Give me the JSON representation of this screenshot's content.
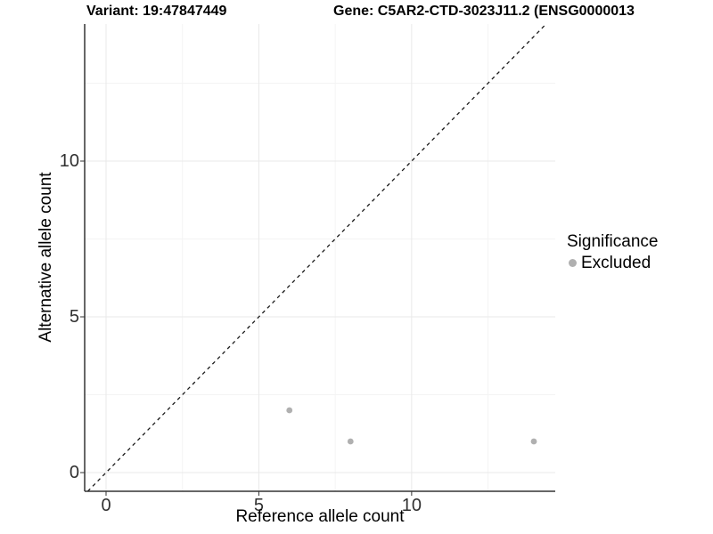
{
  "chart_data": {
    "type": "scatter",
    "title_left": "Variant: 19:47847449",
    "title_right": "Gene: C5AR2-CTD-3023J11.2 (ENSG0000013",
    "xlabel": "Reference allele count",
    "ylabel": "Alternative allele count",
    "xlim": [
      -0.7,
      14.7
    ],
    "ylim": [
      -0.6,
      14.4
    ],
    "x_major_ticks": [
      0,
      5,
      10
    ],
    "y_major_ticks": [
      0,
      5,
      10
    ],
    "x_minor_ticks": [
      2.5,
      7.5,
      12.5
    ],
    "y_minor_ticks": [
      2.5,
      7.5,
      12.5
    ],
    "grid": true,
    "series": [
      {
        "name": "Excluded",
        "color": "#b0b0b0",
        "points": [
          {
            "x": 6,
            "y": 2
          },
          {
            "x": 8,
            "y": 1
          },
          {
            "x": 14,
            "y": 1
          }
        ]
      }
    ],
    "reference_line": {
      "type": "identity",
      "slope": 1,
      "intercept": 0,
      "style": "dashed",
      "color": "#1a1a1a"
    },
    "legend": {
      "title": "Significance",
      "position": "right",
      "entries": [
        {
          "label": "Excluded",
          "color": "#b0b0b0"
        }
      ]
    },
    "colors": {
      "grid_major": "#e9e9e9",
      "grid_minor": "#f4f4f4",
      "axis_line": "#333333",
      "tick_text": "#303030"
    }
  }
}
